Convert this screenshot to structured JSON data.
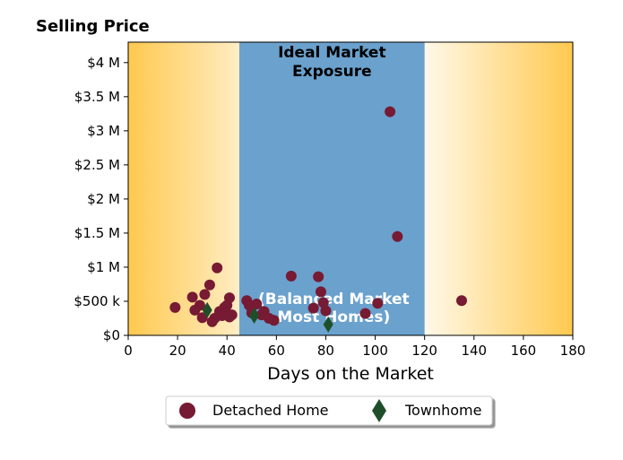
{
  "chart_data": {
    "type": "scatter",
    "title": "Selling Price",
    "xlabel": "Days on the Market",
    "ylabel": "",
    "xlim": [
      0,
      180
    ],
    "ylim": [
      0,
      4300000
    ],
    "x_ticks": [
      0,
      20,
      40,
      60,
      80,
      100,
      120,
      140,
      160,
      180
    ],
    "x_tick_labels": [
      "0",
      "20",
      "40",
      "60",
      "80",
      "100",
      "120",
      "140",
      "160",
      "180"
    ],
    "y_ticks": [
      0,
      500000,
      1000000,
      1500000,
      2000000,
      2500000,
      3000000,
      3500000,
      4000000
    ],
    "y_tick_labels": [
      "$0",
      "$500 k",
      "$1 M",
      "$1.5 M",
      "$2 M",
      "$2.5 M",
      "$3 M",
      "$3.5 M",
      "$4 M"
    ],
    "grid": false,
    "legend_position": "bottom-center",
    "bands": [
      {
        "x_range": [
          45,
          120
        ],
        "color": "#6aa1cd",
        "labels": [
          "Ideal Market Exposure",
          "(Balanced Market Most Homes)"
        ]
      }
    ],
    "background_gradient": {
      "edge_color": "#ffc94f",
      "center_color": "#ffffff"
    },
    "series": [
      {
        "name": "Detached Home",
        "marker": "circle",
        "color": "#771a33",
        "points": [
          [
            19,
            410000
          ],
          [
            26,
            560000
          ],
          [
            27,
            370000
          ],
          [
            29,
            440000
          ],
          [
            31,
            600000
          ],
          [
            30,
            260000
          ],
          [
            33,
            740000
          ],
          [
            34,
            200000
          ],
          [
            35,
            250000
          ],
          [
            36,
            990000
          ],
          [
            37,
            350000
          ],
          [
            38,
            290000
          ],
          [
            39,
            410000
          ],
          [
            40,
            320000
          ],
          [
            41,
            550000
          ],
          [
            40,
            440000
          ],
          [
            41,
            270000
          ],
          [
            42,
            300000
          ],
          [
            48,
            510000
          ],
          [
            49,
            440000
          ],
          [
            50,
            330000
          ],
          [
            52,
            460000
          ],
          [
            54,
            300000
          ],
          [
            55,
            350000
          ],
          [
            57,
            250000
          ],
          [
            59,
            220000
          ],
          [
            66,
            870000
          ],
          [
            75,
            400000
          ],
          [
            77,
            860000
          ],
          [
            78,
            640000
          ],
          [
            79,
            480000
          ],
          [
            80,
            360000
          ],
          [
            96,
            320000
          ],
          [
            101,
            470000
          ],
          [
            106,
            3280000
          ],
          [
            109,
            1450000
          ],
          [
            135,
            510000
          ]
        ]
      },
      {
        "name": "Townhome",
        "marker": "diamond",
        "color": "#1f4f2a",
        "points": [
          [
            32,
            370000
          ],
          [
            51,
            290000
          ],
          [
            81,
            160000
          ]
        ]
      }
    ]
  }
}
